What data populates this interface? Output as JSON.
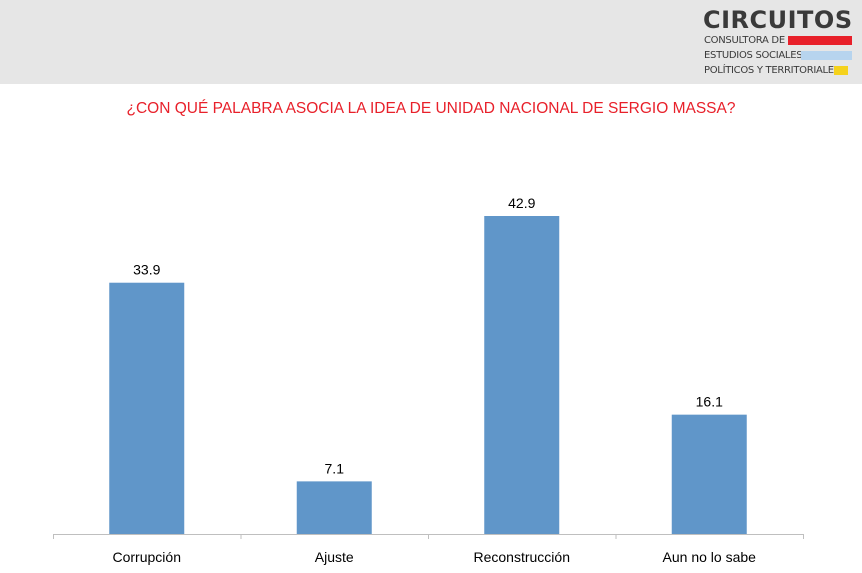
{
  "logo": {
    "name": "CIRCUITOS",
    "lines": [
      "CONSULTORA DE",
      "ESTUDIOS SOCIALES,",
      "POLÍTICOS Y TERRITORIALES"
    ],
    "bar_colors": [
      "#e8202a",
      "#b7d4ee",
      "#f5d21c"
    ]
  },
  "chart_data": {
    "type": "bar",
    "title": "¿CON QUÉ PALABRA ASOCIA LA IDEA DE UNIDAD NACIONAL DE SERGIO MASSA?",
    "categories": [
      "Corrupción",
      "Ajuste",
      "Reconstrucción",
      "Aun no lo sabe"
    ],
    "values": [
      33.9,
      7.1,
      42.9,
      16.1
    ],
    "bar_color": "#6096c9",
    "title_color": "#e8202a",
    "ylim": [
      0,
      50
    ],
    "grid": false,
    "data_labels": true
  }
}
